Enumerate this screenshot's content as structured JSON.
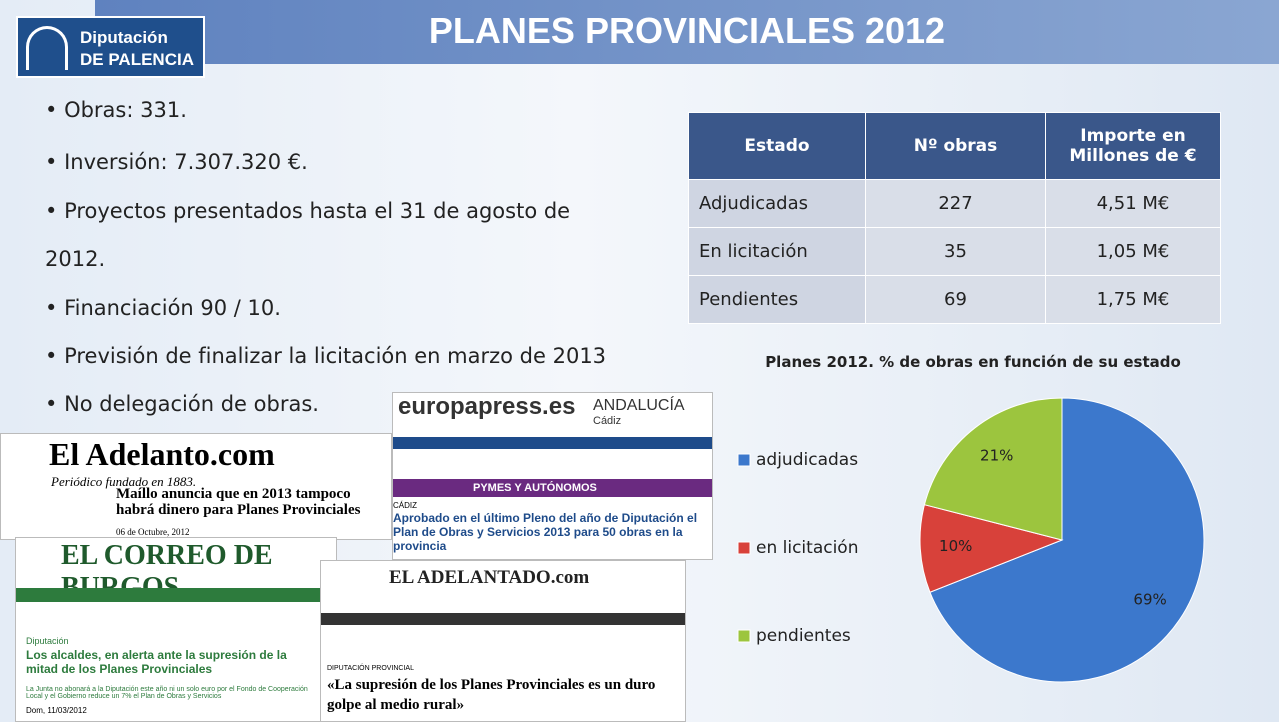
{
  "logo": {
    "line1": "Diputación",
    "line2": "DE PALENCIA"
  },
  "header": {
    "title": "PLANES PROVINCIALES 2012"
  },
  "bullets": [
    "Obras: 331.",
    "Inversión: 7.307.320 €.",
    "Proyectos presentados hasta el 31 de agosto de 2012.",
    "Financiación 90 / 10.",
    "Previsión de finalizar la licitación en marzo de 2013",
    "No delegación de obras."
  ],
  "table": {
    "columns": [
      "Estado",
      "Nº obras",
      "Importe en Millones de €"
    ],
    "rows": [
      [
        "Adjudicadas",
        "227",
        "4,51 M€"
      ],
      [
        "En licitación",
        "35",
        "1,05 M€"
      ],
      [
        "Pendientes",
        "69",
        "1,75 M€"
      ]
    ]
  },
  "clippings": [
    {
      "masthead": "El Adelanto.com",
      "tagline": "Periódico fundado en 1883.",
      "headline": "Maíllo anuncia que en 2013 tampoco habrá dinero para Planes Provinciales",
      "date": "06 de Octubre, 2012"
    },
    {
      "masthead": "europapress.es",
      "region": "ANDALUCÍA",
      "city": "Cádiz",
      "banner": "PYMES Y AUTÓNOMOS",
      "section": "CÁDIZ",
      "headline": "Aprobado en el último Pleno del año de Diputación el Plan de Obras y Servicios 2013 para 50 obras en la provincia"
    },
    {
      "masthead": "EL CORREO DE BURGOS",
      "section": "Diputación",
      "headline": "Los alcaldes, en alerta ante la supresión de la mitad de los Planes Provinciales",
      "summary": "La Junta no abonará a la Diputación este año ni un solo euro por el Fondo de Cooperación Local y el Gobierno reduce un 7% el Plan de Obras y Servicios",
      "date": "Dom, 11/03/2012"
    },
    {
      "masthead": "EL ADELANTADO.com",
      "section": "DIPUTACIÓN PROVINCIAL",
      "headline": "«La supresión de los Planes Provinciales es un duro golpe al medio rural»"
    }
  ],
  "chart_data": {
    "type": "pie",
    "title": "Planes 2012. % de  obras en función de su estado",
    "categories": [
      "adjudicadas",
      "en licitación",
      "pendientes"
    ],
    "values": [
      69,
      10,
      21
    ],
    "value_labels": [
      "69%",
      "10%",
      "21%"
    ],
    "colors": [
      "#3c78cc",
      "#d8413a",
      "#9cc53e"
    ],
    "legend": "left"
  }
}
